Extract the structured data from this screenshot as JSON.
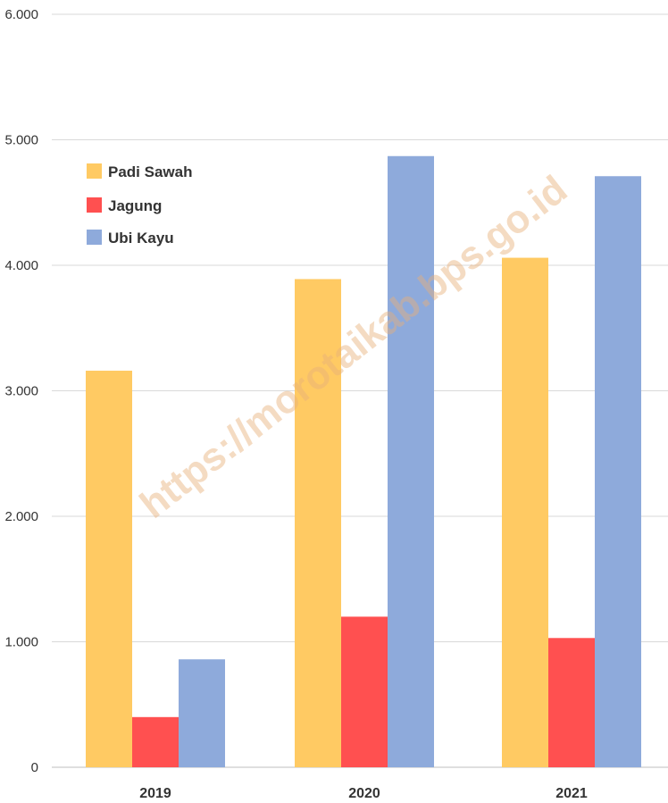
{
  "chart_data": {
    "type": "bar",
    "categories": [
      "2019",
      "2020",
      "2021"
    ],
    "series": [
      {
        "name": "Padi Sawah",
        "color": "#ffca63",
        "values": [
          3160,
          3890,
          4060
        ]
      },
      {
        "name": "Jagung",
        "color": "#ff5050",
        "values": [
          400,
          1200,
          1030
        ]
      },
      {
        "name": "Ubi Kayu",
        "color": "#8eaadb",
        "values": [
          860,
          4870,
          4710
        ]
      }
    ],
    "ylim": [
      0,
      6000
    ],
    "yticks": [
      0,
      1000,
      2000,
      3000,
      4000,
      5000,
      6000
    ],
    "ytick_labels": [
      "0",
      "1.000",
      "2.000",
      "3.000",
      "4.000",
      "5.000",
      "6.000"
    ],
    "grid": true,
    "legend_position": "top-left"
  },
  "watermark": "https://morotaikab.bps.go.id"
}
